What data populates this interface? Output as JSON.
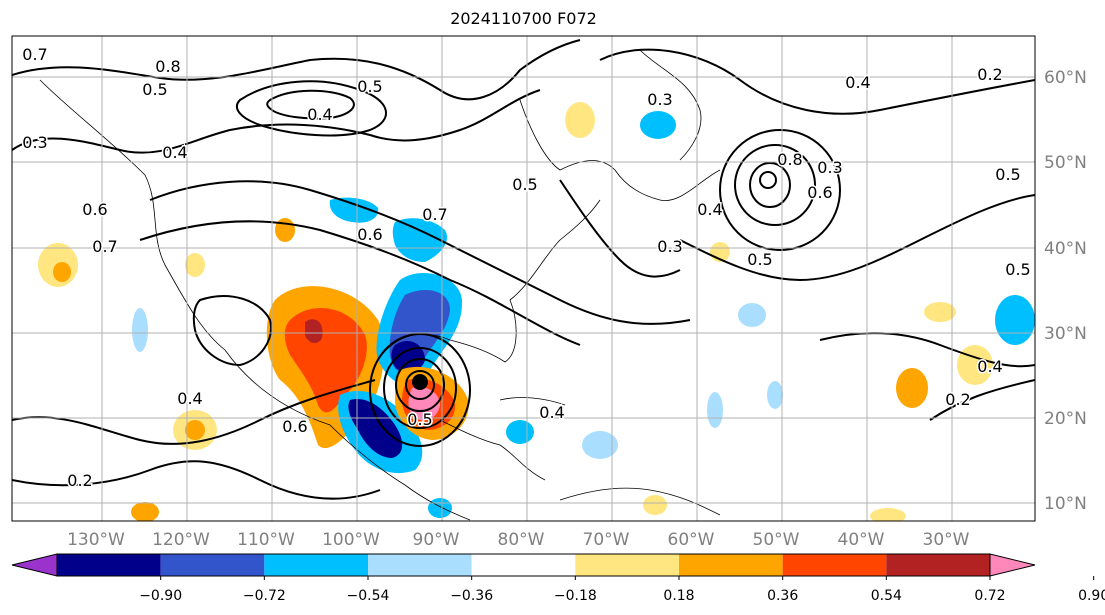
{
  "title": "2024110700 F072",
  "lon_labels": [
    "130°W",
    "120°W",
    "110°W",
    "100°W",
    "90°W",
    "80°W",
    "70°W",
    "60°W",
    "50°W",
    "40°W",
    "30°W"
  ],
  "lat_labels": [
    "60°N",
    "50°N",
    "40°N",
    "30°N",
    "20°N",
    "10°N"
  ],
  "colorbar": {
    "ticks": [
      "−0.90",
      "−0.72",
      "−0.54",
      "−0.36",
      "−0.18",
      "0.18",
      "0.36",
      "0.54",
      "0.72",
      "0.90"
    ],
    "colors": [
      "#9933cc",
      "#00008b",
      "#3355cc",
      "#00bfff",
      "#aadeff",
      "#ffffff",
      "#ffe680",
      "#ffa500",
      "#ff4500",
      "#b22222",
      "#ff88bb"
    ]
  },
  "contour_labels": [
    "0.7",
    "0.8",
    "0.5",
    "0.4",
    "0.5",
    "0.3",
    "0.4",
    "0.6",
    "0.7",
    "0.6",
    "0.7",
    "0.3",
    "0.5",
    "0.4",
    "0.8",
    "0.6",
    "0.5",
    "0.3",
    "0.4",
    "0.3",
    "0.5",
    "0.4",
    "0.2",
    "0.5",
    "0.2",
    "0.4",
    "0.6",
    "0.5",
    "0.2",
    "0.4"
  ],
  "colors": {
    "grid": "#b0b0b0",
    "axis_label": "#808080",
    "contour": "#000000"
  }
}
